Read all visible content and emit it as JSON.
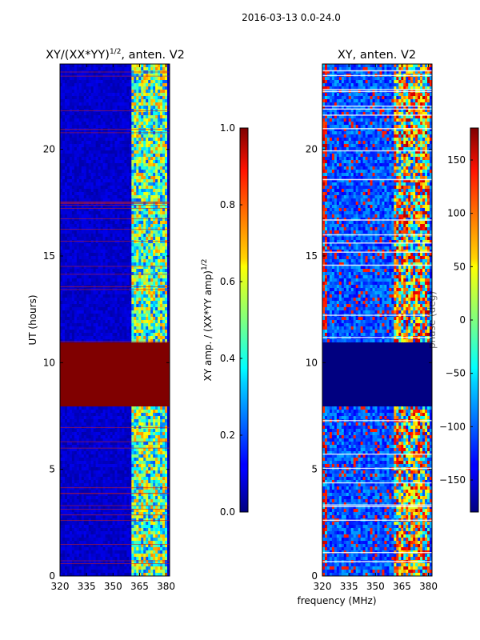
{
  "figure_title": "2016-03-13 0.0-24.0",
  "chart_data": [
    {
      "type": "heatmap",
      "title": "XY/(XX*YY)",
      "title_exponent": "1/2",
      "title_suffix": ", anten. V2",
      "xlabel": "",
      "ylabel": "UT (hours)",
      "xlim": [
        320,
        382
      ],
      "ylim": [
        0,
        24
      ],
      "xticks": [
        "320",
        "335",
        "350",
        "365",
        "380"
      ],
      "yticks": [
        "0",
        "5",
        "10",
        "15",
        "20"
      ],
      "colormap": "jet",
      "colorbar": {
        "label": "XY amp. / (XX*YY amp)",
        "label_exponent": "1/2",
        "range": [
          0.0,
          1.0
        ],
        "ticks": [
          "0.0",
          "0.2",
          "0.4",
          "0.6",
          "0.8",
          "1.0"
        ]
      },
      "saturated_bands_hours": [
        [
          8.0,
          10.9
        ]
      ],
      "high_value_band_mhz": [
        360,
        381
      ],
      "background_value": 0.05
    },
    {
      "type": "heatmap",
      "title": "XY, anten. V2",
      "xlabel": "frequency (MHz)",
      "ylabel": "",
      "xlim": [
        320,
        382
      ],
      "ylim": [
        0,
        24
      ],
      "xticks": [
        "320",
        "335",
        "350",
        "365",
        "380"
      ],
      "yticks": [
        "0",
        "5",
        "10",
        "15",
        "20"
      ],
      "colormap": "jet",
      "colorbar": {
        "label": "phase (deg)",
        "range": [
          -180,
          180
        ],
        "ticks": [
          "−150",
          "−100",
          "−50",
          "0",
          "50",
          "100",
          "150"
        ]
      },
      "empty_bands_hours": [
        [
          8.0,
          10.9
        ]
      ],
      "high_value_band_mhz": [
        360,
        381
      ]
    }
  ]
}
